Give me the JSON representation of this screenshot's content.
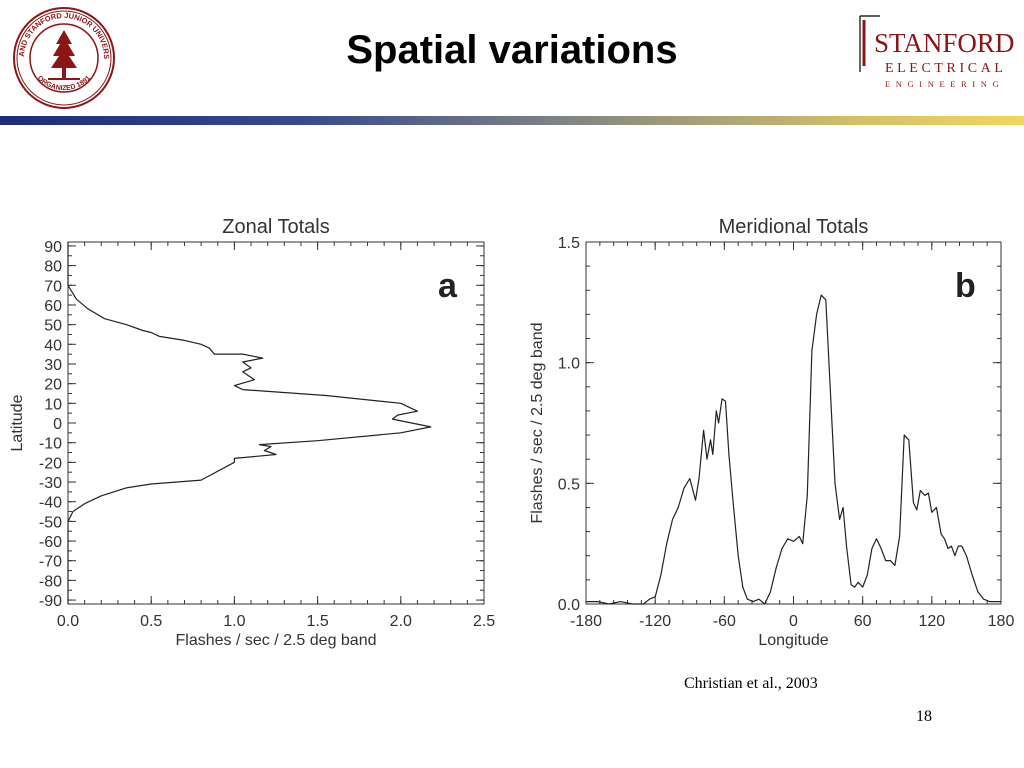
{
  "slide": {
    "title": "Spatial variations",
    "citation": "Christian et al., 2003",
    "page_number": "18",
    "seal_text": "LELAND STANFORD JUNIOR UNIVERSITY",
    "seal_bottom_text": "ORGANIZED 1891",
    "logo_line1": "STANFORD",
    "logo_line2": "ELECTRICAL",
    "logo_line3": "ENGINEERING",
    "colors": {
      "logo_red": "#8c1515",
      "bar_blue": "#1b2d7a",
      "bar_gold": "#f2d65a"
    }
  },
  "chart_data": [
    {
      "type": "line",
      "title": "Zonal Totals",
      "panel_label": "a",
      "xlabel": "Flashes / sec / 2.5 deg band",
      "ylabel": "Latitude",
      "xlim": [
        0,
        2.5
      ],
      "ylim": [
        -92,
        92
      ],
      "x_ticks": [
        0,
        0.5,
        1,
        1.5,
        2,
        2.5
      ],
      "x_tick_labels": [
        "0.0",
        "0.5",
        "1.0",
        "1.5",
        "2.0",
        "2.5"
      ],
      "y_ticks": [
        90,
        80,
        70,
        60,
        50,
        40,
        30,
        20,
        10,
        0,
        -10,
        -20,
        -30,
        -40,
        -50,
        -60,
        -70,
        -80,
        -90
      ],
      "y_tick_labels": [
        "90",
        "80",
        "70",
        "60",
        "50",
        "40",
        "30",
        "20",
        "10",
        "0",
        "-10",
        "-20",
        "-30",
        "-40",
        "-50",
        "-60",
        "-70",
        "-80",
        "-90"
      ],
      "grid": false,
      "series": [
        {
          "x": [
            0,
            0,
            0.05,
            0.12,
            0.22,
            0.35,
            0.45,
            0.5,
            0.55,
            0.7,
            0.8,
            0.85,
            0.88,
            1.05,
            1.17,
            1.05,
            1.1,
            1.05,
            1.12,
            1.0,
            1.05,
            1.55,
            2.0,
            2.1,
            1.98,
            1.95,
            2.18,
            2.0,
            1.5,
            1.15,
            1.22,
            1.18,
            1.25,
            1.0,
            1.0,
            0.8,
            0.5,
            0.35,
            0.2,
            0.1,
            0.03,
            0,
            0
          ],
          "y": [
            92,
            70,
            63,
            58,
            53,
            50,
            47,
            46,
            44,
            42,
            40,
            38,
            35,
            35,
            33,
            31,
            28,
            26,
            22,
            19,
            17,
            14,
            10,
            6,
            4,
            2,
            -2,
            -5,
            -9,
            -11,
            -12,
            -14,
            -16,
            -18,
            -20,
            -29,
            -31,
            -33,
            -37,
            -41,
            -45,
            -50,
            -92
          ]
        }
      ]
    },
    {
      "type": "line",
      "title": "Meridional Totals",
      "panel_label": "b",
      "xlabel": "Longitude",
      "ylabel": "Flashes / sec / 2.5 deg band",
      "xlim": [
        -180,
        180
      ],
      "ylim": [
        0,
        1.5
      ],
      "x_ticks": [
        -180,
        -120,
        -60,
        0,
        60,
        120,
        180
      ],
      "x_tick_labels": [
        "-180",
        "-120",
        "-60",
        "0",
        "60",
        "120",
        "180"
      ],
      "y_ticks": [
        0,
        0.5,
        1.0,
        1.5
      ],
      "y_tick_labels": [
        "0.0",
        "0.5",
        "1.0",
        "1.5"
      ],
      "grid": false,
      "series": [
        {
          "x": [
            -180,
            -170,
            -160,
            -150,
            -140,
            -130,
            -125,
            -120,
            -115,
            -110,
            -105,
            -100,
            -95,
            -90,
            -85,
            -82,
            -78,
            -75,
            -72,
            -70,
            -67,
            -65,
            -62,
            -59,
            -56,
            -52,
            -48,
            -44,
            -40,
            -35,
            -30,
            -25,
            -20,
            -15,
            -10,
            -5,
            0,
            5,
            8,
            12,
            16,
            20,
            24,
            28,
            32,
            36,
            40,
            43,
            46,
            50,
            53,
            56,
            60,
            64,
            68,
            72,
            76,
            80,
            84,
            88,
            92,
            96,
            100,
            104,
            107,
            110,
            114,
            117,
            120,
            124,
            128,
            131,
            134,
            137,
            140,
            143,
            146,
            150,
            155,
            160,
            165,
            170,
            175,
            180
          ],
          "y": [
            0.01,
            0.01,
            0.0,
            0.01,
            0.0,
            0.0,
            0.02,
            0.03,
            0.12,
            0.25,
            0.35,
            0.4,
            0.48,
            0.52,
            0.43,
            0.52,
            0.72,
            0.6,
            0.68,
            0.62,
            0.8,
            0.75,
            0.85,
            0.84,
            0.62,
            0.4,
            0.2,
            0.07,
            0.02,
            0.01,
            0.02,
            0.0,
            0.05,
            0.15,
            0.23,
            0.27,
            0.26,
            0.28,
            0.25,
            0.45,
            1.05,
            1.2,
            1.28,
            1.26,
            0.88,
            0.5,
            0.35,
            0.4,
            0.24,
            0.08,
            0.07,
            0.09,
            0.07,
            0.12,
            0.23,
            0.27,
            0.23,
            0.18,
            0.18,
            0.16,
            0.28,
            0.7,
            0.68,
            0.42,
            0.39,
            0.47,
            0.45,
            0.46,
            0.38,
            0.4,
            0.29,
            0.27,
            0.23,
            0.24,
            0.2,
            0.24,
            0.24,
            0.2,
            0.12,
            0.05,
            0.02,
            0.01,
            0.01,
            0.01
          ]
        }
      ]
    }
  ]
}
